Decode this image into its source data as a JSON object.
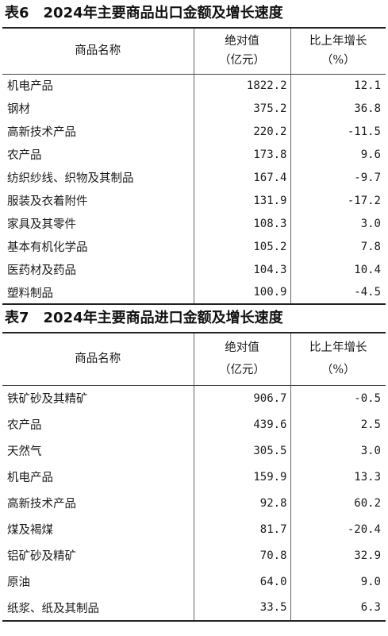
{
  "table6": {
    "title": "表6　2024年主要商品出口金额及增长速度",
    "headers": {
      "name": "商品名称",
      "value_line1": "绝对值",
      "value_line2": "（亿元）",
      "growth_line1": "比上年增长",
      "growth_line2": "（%）"
    },
    "rows": [
      {
        "name": "机电产品",
        "value": "1822.2",
        "growth": "12.1"
      },
      {
        "name": "钢材",
        "value": "375.2",
        "growth": "36.8"
      },
      {
        "name": "高新技术产品",
        "value": "220.2",
        "growth": "-11.5"
      },
      {
        "name": "农产品",
        "value": "173.8",
        "growth": "9.6"
      },
      {
        "name": "纺织纱线、织物及其制品",
        "value": "167.4",
        "growth": "-9.7"
      },
      {
        "name": "服装及衣着附件",
        "value": "131.9",
        "growth": "-17.2"
      },
      {
        "name": "家具及其零件",
        "value": "108.3",
        "growth": "3.0"
      },
      {
        "name": "基本有机化学品",
        "value": "105.2",
        "growth": "7.8"
      },
      {
        "name": "医药材及药品",
        "value": "104.3",
        "growth": "10.4"
      },
      {
        "name": "塑料制品",
        "value": "100.9",
        "growth": "-4.5"
      }
    ]
  },
  "table7": {
    "title": "表7　2024年主要商品进口金额及增长速度",
    "headers": {
      "name": "商品名称",
      "value_line1": "绝对值",
      "value_line2": "（亿元）",
      "growth_line1": "比上年增长",
      "growth_line2": "（%）"
    },
    "rows": [
      {
        "name": "铁矿砂及其精矿",
        "value": "906.7",
        "growth": "-0.5"
      },
      {
        "name": "农产品",
        "value": "439.6",
        "growth": "2.5"
      },
      {
        "name": "天然气",
        "value": "305.5",
        "growth": "3.0"
      },
      {
        "name": "机电产品",
        "value": "159.9",
        "growth": "13.3"
      },
      {
        "name": "高新技术产品",
        "value": "92.8",
        "growth": "60.2"
      },
      {
        "name": "煤及褐煤",
        "value": "81.7",
        "growth": "-20.4"
      },
      {
        "name": "铝矿砂及精矿",
        "value": "70.8",
        "growth": "32.9"
      },
      {
        "name": "原油",
        "value": "64.0",
        "growth": "9.0"
      },
      {
        "name": "纸浆、纸及其制品",
        "value": "33.5",
        "growth": "6.3"
      }
    ]
  }
}
